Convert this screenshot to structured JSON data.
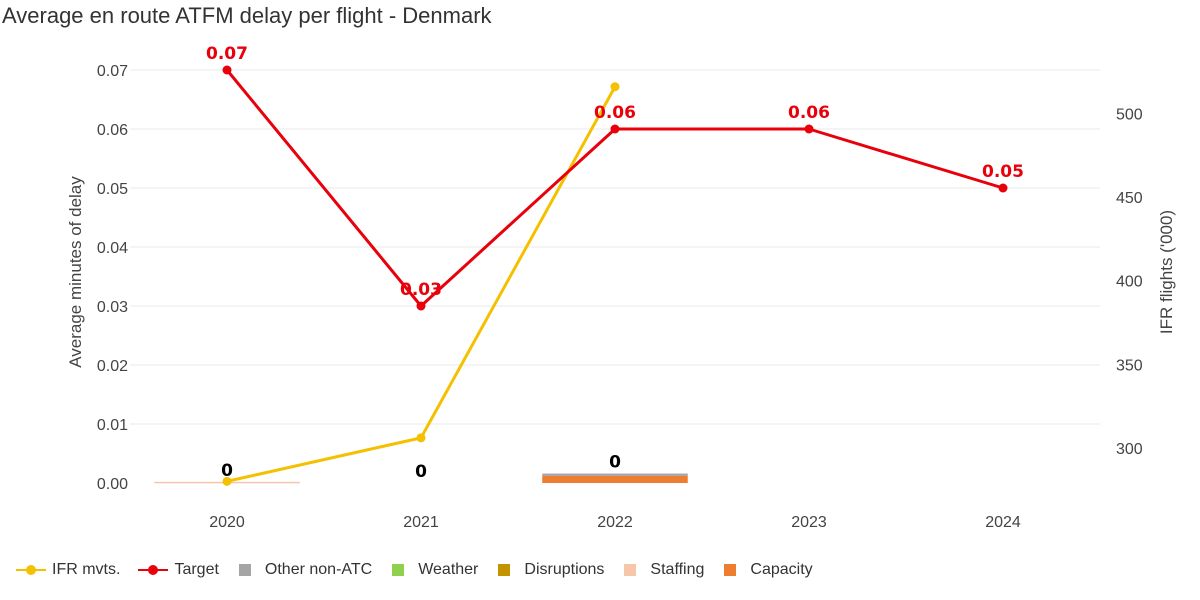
{
  "title": "Average en route ATFM delay per flight - Denmark",
  "chart_data": {
    "type": "bar",
    "categories": [
      "2020",
      "2021",
      "2022",
      "2023",
      "2024"
    ],
    "y_left": {
      "label": "Average minutes of delay",
      "range": [
        0,
        0.07
      ],
      "ticks": [
        "0.00",
        "0.01",
        "0.02",
        "0.03",
        "0.04",
        "0.05",
        "0.06",
        "0.07"
      ]
    },
    "y_right": {
      "label": "IFR flights ('000)",
      "range": [
        279,
        526
      ],
      "ticks": [
        "300",
        "350",
        "400",
        "450",
        "500"
      ]
    },
    "grid": true,
    "legend_position": "bottom",
    "series": [
      {
        "name": "IFR mvts.",
        "type": "line",
        "axis": "right",
        "color": "#f5c000",
        "values": [
          280,
          306,
          516,
          null,
          null
        ]
      },
      {
        "name": "Target",
        "type": "line",
        "axis": "left",
        "color": "#e8000b",
        "values": [
          0.07,
          0.03,
          0.06,
          0.06,
          0.05
        ],
        "labels": [
          "0.07",
          "0.03",
          "0.06",
          "0.06",
          "0.05"
        ]
      },
      {
        "name": "Other non-ATC",
        "type": "bar",
        "color": "#a5a5a5",
        "values": [
          0,
          0,
          0.0004,
          null,
          null
        ]
      },
      {
        "name": "Weather",
        "type": "bar",
        "color": "#8fd14f",
        "values": [
          0,
          0,
          0,
          null,
          null
        ]
      },
      {
        "name": "Disruptions",
        "type": "bar",
        "color": "#c49400",
        "values": [
          0,
          0,
          0,
          null,
          null
        ]
      },
      {
        "name": "Staffing",
        "type": "bar",
        "color": "#f6c6a8",
        "values": [
          0.0002,
          0,
          0,
          null,
          null
        ]
      },
      {
        "name": "Capacity",
        "type": "bar",
        "color": "#ed7d31",
        "values": [
          0,
          0,
          0.0012,
          null,
          null
        ]
      }
    ],
    "total_labels": [
      "0",
      "0",
      "0",
      "",
      ""
    ]
  }
}
